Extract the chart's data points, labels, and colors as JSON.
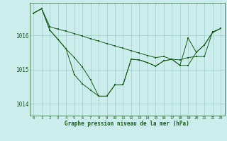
{
  "xlabel": "Graphe pression niveau de la mer (hPa)",
  "background_color": "#cbeeed",
  "grid_color": "#9dcccc",
  "line_color": "#1a5c1a",
  "x_ticks": [
    0,
    1,
    2,
    3,
    4,
    5,
    6,
    7,
    8,
    9,
    10,
    11,
    12,
    13,
    14,
    15,
    16,
    17,
    18,
    19,
    20,
    21,
    22,
    23
  ],
  "y_ticks": [
    1014,
    1015,
    1016
  ],
  "ylim": [
    1013.65,
    1016.95
  ],
  "xlim": [
    -0.5,
    23.5
  ],
  "series1": [
    1016.65,
    1016.78,
    1016.25,
    1016.18,
    1016.12,
    1016.05,
    1015.98,
    1015.9,
    1015.83,
    1015.76,
    1015.69,
    1015.62,
    1015.55,
    1015.48,
    1015.41,
    1015.35,
    1015.38,
    1015.3,
    1015.28,
    1015.35,
    1015.38,
    1015.38,
    1016.1,
    1016.2
  ],
  "series2": [
    1016.65,
    1016.78,
    1016.15,
    1015.88,
    1015.6,
    1015.35,
    1015.07,
    1014.7,
    1014.22,
    1014.22,
    1014.55,
    1014.55,
    1015.3,
    1015.28,
    1015.2,
    1015.1,
    1015.25,
    1015.3,
    1015.12,
    1015.12,
    1015.5,
    1015.72,
    1016.08,
    1016.2
  ],
  "series3": [
    1016.65,
    1016.78,
    1016.15,
    1015.88,
    1015.6,
    1014.85,
    1014.58,
    1014.4,
    1014.22,
    1014.22,
    1014.55,
    1014.55,
    1015.3,
    1015.28,
    1015.2,
    1015.1,
    1015.25,
    1015.3,
    1015.12,
    1015.92,
    1015.5,
    1015.72,
    1016.08,
    1016.2
  ]
}
